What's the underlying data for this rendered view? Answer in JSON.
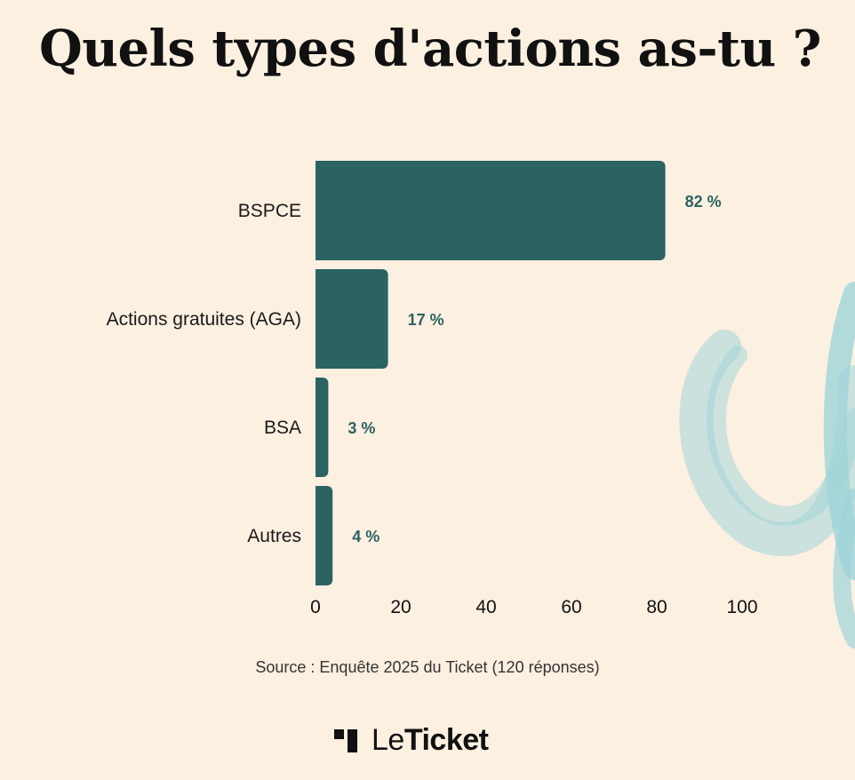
{
  "title": "Quels types d'actions as-tu ?",
  "source": "Source : Enquête 2025 du Ticket (120 réponses)",
  "logo": {
    "light": "Le",
    "bold": "Ticket"
  },
  "colors": {
    "background": "#fcf0e1",
    "bar": "#2b6363",
    "value_label": "#2b6363",
    "decor": "#8fcfd8"
  },
  "chart_data": {
    "type": "bar",
    "orientation": "horizontal",
    "categories": [
      "BSPCE",
      "Actions gratuites (AGA)",
      "BSA",
      "Autres"
    ],
    "values": [
      82,
      17,
      3,
      4
    ],
    "value_labels": [
      "82 %",
      "17 %",
      "3 %",
      "4 %"
    ],
    "xlim": [
      0,
      100
    ],
    "xticks": [
      0,
      20,
      40,
      60,
      80,
      100
    ],
    "grid": false,
    "legend": "none"
  }
}
